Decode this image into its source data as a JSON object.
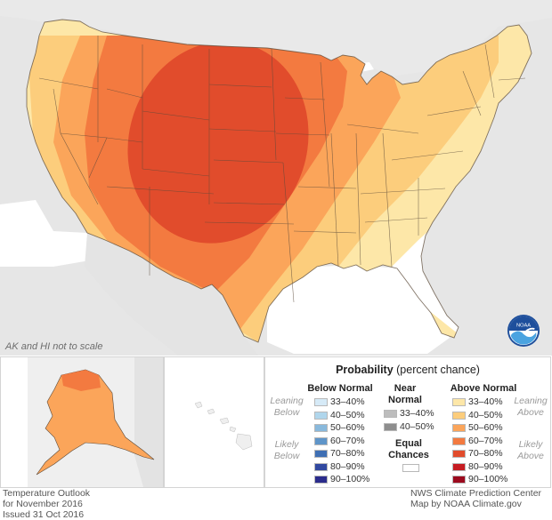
{
  "scale_note": "AK and HI not to scale",
  "legend": {
    "title_bold": "Probability",
    "title_rest": " (percent chance)",
    "below": {
      "heading": "Below Normal",
      "items": [
        {
          "label": "33–40%",
          "color": "#d6eaf7"
        },
        {
          "label": "40–50%",
          "color": "#b0d6ec"
        },
        {
          "label": "50–60%",
          "color": "#89b9dc"
        },
        {
          "label": "60–70%",
          "color": "#5f95c9"
        },
        {
          "label": "70–80%",
          "color": "#3f6fb3"
        },
        {
          "label": "80–90%",
          "color": "#3149a0"
        },
        {
          "label": "90–100%",
          "color": "#2b2c8c"
        }
      ]
    },
    "near": {
      "heading_line1": "Near",
      "heading_line2": "Normal",
      "items": [
        {
          "label": "33–40%",
          "color": "#bdbdbd"
        },
        {
          "label": "40–50%",
          "color": "#8e8e8e"
        }
      ]
    },
    "equal": {
      "line1": "Equal",
      "line2": "Chances",
      "color": "#ffffff"
    },
    "above": {
      "heading": "Above Normal",
      "items": [
        {
          "label": "33–40%",
          "color": "#fde7a8"
        },
        {
          "label": "40–50%",
          "color": "#fccd7c"
        },
        {
          "label": "50–60%",
          "color": "#fba55a"
        },
        {
          "label": "60–70%",
          "color": "#f37a40"
        },
        {
          "label": "70–80%",
          "color": "#e14c2c"
        },
        {
          "label": "80–90%",
          "color": "#c61c22"
        },
        {
          "label": "90–100%",
          "color": "#9c0a1e"
        }
      ]
    },
    "side_labels": {
      "leaning_below_1": "Leaning",
      "leaning_below_2": "Below",
      "likely_below_1": "Likely",
      "likely_below_2": "Below",
      "leaning_above_1": "Leaning",
      "leaning_above_2": "Above",
      "likely_above_1": "Likely",
      "likely_above_2": "Above"
    }
  },
  "footer_left": {
    "line1": "Temperature Outlook",
    "line2": "for November 2016",
    "line3": "Issued 31 Oct 2016"
  },
  "footer_right": {
    "line1": "NWS Climate Prediction Center",
    "line2": "Map by NOAA Climate.gov"
  },
  "logo_text": "NOAA",
  "colors": {
    "background_land": "#e6e6e6",
    "water": "#ffffff",
    "state_border": "#5b4a3a"
  }
}
